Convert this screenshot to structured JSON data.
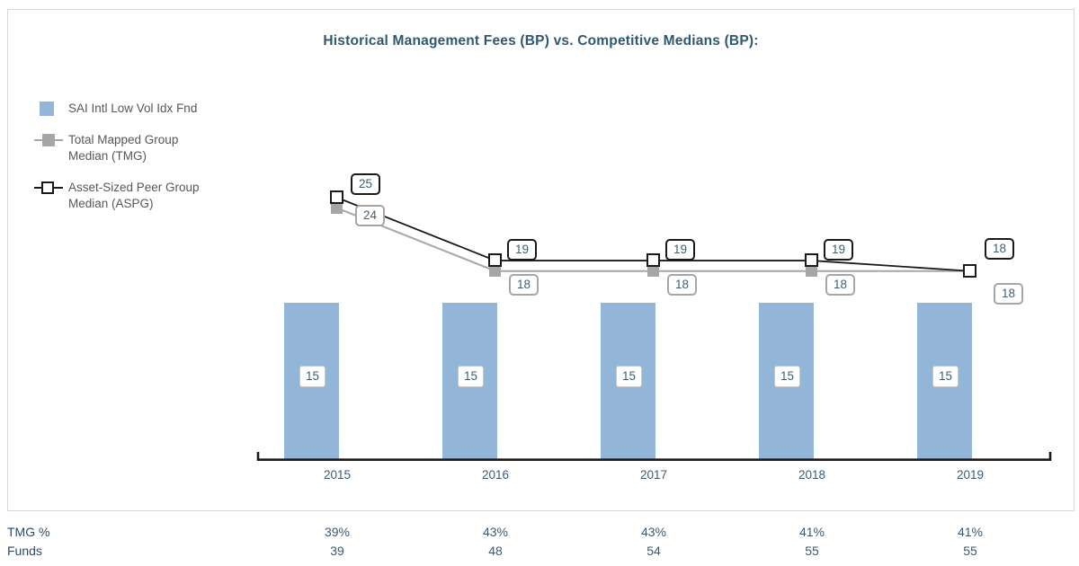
{
  "title": "Historical Management Fees (BP) vs. Competitive Medians (BP):",
  "colors": {
    "bar": "#92b5d8",
    "tmg_line": "#a6a6a6",
    "aspg_line": "#1a1a1a",
    "title_text": "#2e5871",
    "value_text": "#3d5f77",
    "axis": "#1a1a1a"
  },
  "legend": {
    "items": [
      {
        "swatch": "blue-square",
        "line1": "SAI Intl Low Vol Idx Fnd",
        "line2": ""
      },
      {
        "swatch": "gray-filled-square-on-line",
        "line1": "Total Mapped Group",
        "line2": "Median (TMG)"
      },
      {
        "swatch": "black-open-square-on-line",
        "line1": "Asset-Sized Peer Group",
        "line2": "Median (ASPG)"
      }
    ]
  },
  "chart_data": {
    "type": "bar+line",
    "title": "Historical Management Fees (BP) vs. Competitive Medians (BP):",
    "categories": [
      "2015",
      "2016",
      "2017",
      "2018",
      "2019"
    ],
    "series": [
      {
        "name": "SAI Intl Low Vol Idx Fnd",
        "type": "bar",
        "marker": "none",
        "values": [
          15,
          15,
          15,
          15,
          15
        ]
      },
      {
        "name": "Total Mapped Group Median (TMG)",
        "type": "line",
        "marker": "filled-square",
        "values": [
          24,
          18,
          18,
          18,
          18
        ]
      },
      {
        "name": "Asset-Sized Peer Group Median (ASPG)",
        "type": "line",
        "marker": "open-square",
        "values": [
          25,
          19,
          19,
          19,
          18
        ]
      }
    ],
    "ylim": [
      0,
      27
    ],
    "grid": false,
    "y_axis_visible": false,
    "legend_position": "left"
  },
  "table": {
    "rows": [
      {
        "label": "TMG %",
        "values": [
          "39%",
          "43%",
          "43%",
          "41%",
          "41%"
        ]
      },
      {
        "label": "Funds",
        "values": [
          "39",
          "48",
          "54",
          "55",
          "55"
        ]
      }
    ]
  }
}
